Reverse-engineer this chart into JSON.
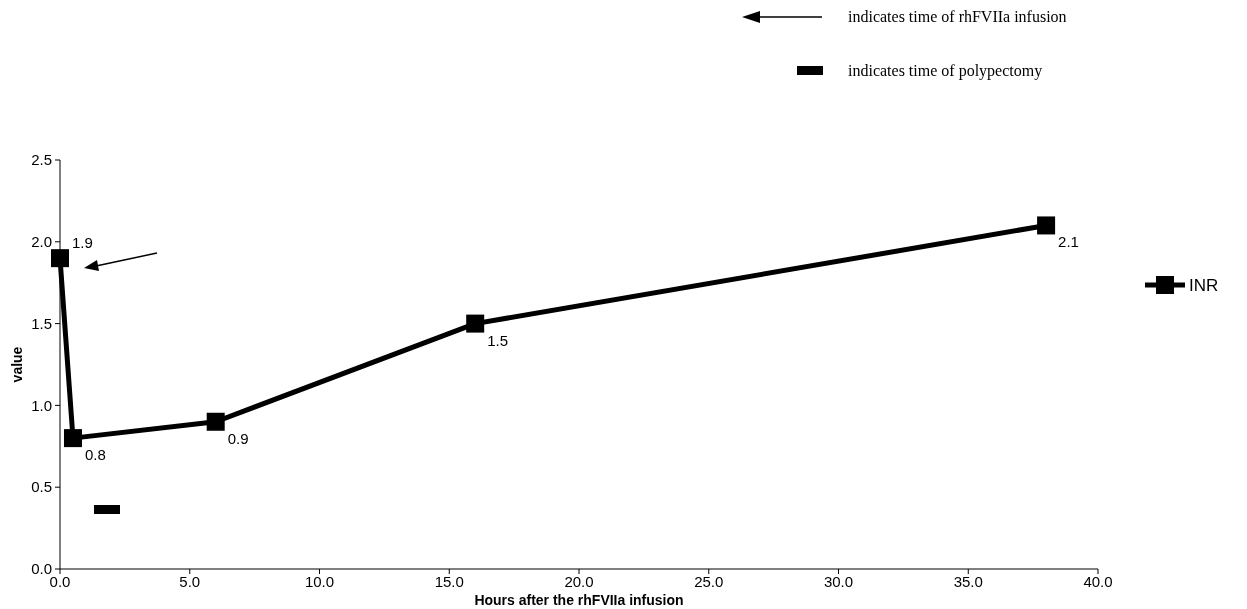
{
  "chart_data": {
    "type": "line",
    "xlabel": "Hours after the rhFVIIa infusion",
    "ylabel": "value",
    "x": [
      0,
      0.5,
      6,
      16,
      38
    ],
    "series": [
      {
        "name": "INR",
        "color": "#000000",
        "values": [
          1.9,
          0.8,
          0.9,
          1.5,
          2.1
        ]
      }
    ],
    "xlim": [
      0,
      40
    ],
    "xticks": [
      {
        "value": 0,
        "label": "0.0"
      },
      {
        "value": 5,
        "label": "5.0"
      },
      {
        "value": 10,
        "label": "10.0"
      },
      {
        "value": 15,
        "label": "15.0"
      },
      {
        "value": 20,
        "label": "20.0"
      },
      {
        "value": 25,
        "label": "25.0"
      },
      {
        "value": 30,
        "label": "30.0"
      },
      {
        "value": 35,
        "label": "35.0"
      },
      {
        "value": 40,
        "label": "40.0"
      }
    ],
    "ylim": [
      0,
      2.5
    ],
    "yticks": [
      {
        "value": 0,
        "label": "0.0"
      },
      {
        "value": 0.5,
        "label": "0.5"
      },
      {
        "value": 1,
        "label": "1.0"
      },
      {
        "value": 1.5,
        "label": "1.5"
      },
      {
        "value": 2,
        "label": "2.0"
      },
      {
        "value": 2.5,
        "label": "2.5"
      }
    ],
    "data_labels": true,
    "legend": "right",
    "marker": "square",
    "line_style": "solid",
    "grid": false,
    "annotations": [
      "indicates time of rhFVIIa infusion",
      "indicates time of polypectomy"
    ]
  }
}
